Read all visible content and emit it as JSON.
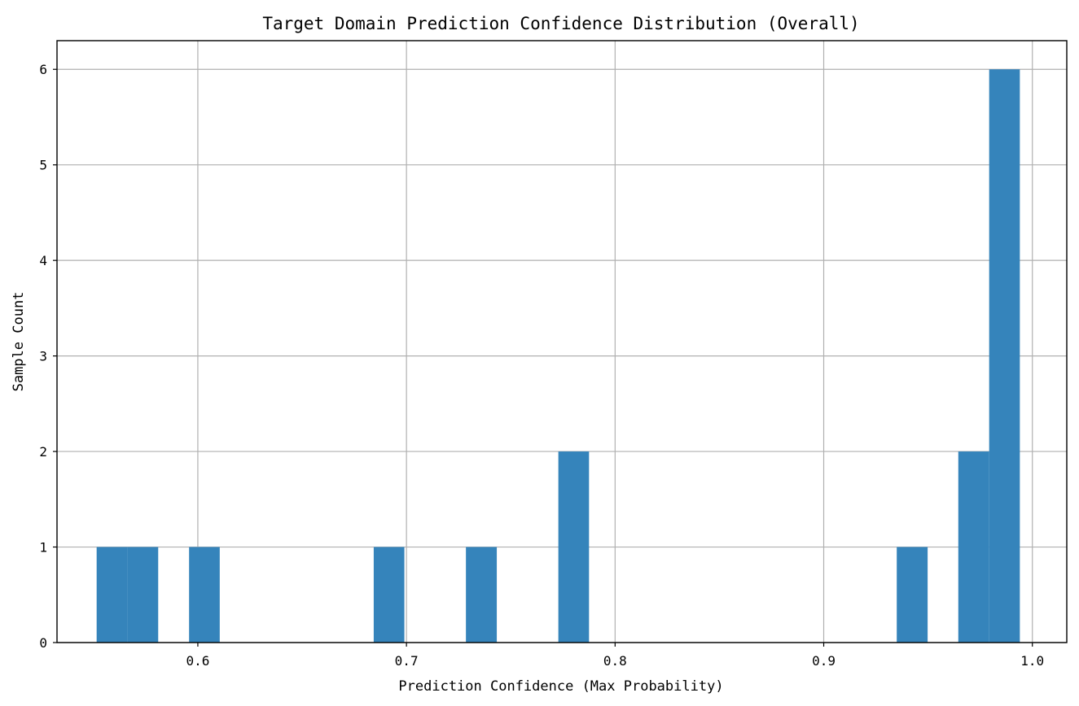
{
  "chart_data": {
    "type": "bar",
    "title": "Target Domain Prediction Confidence Distribution (Overall)",
    "xlabel": "Prediction Confidence (Max Probability)",
    "ylabel": "Sample Count",
    "xlim": [
      0.5325,
      1.0165
    ],
    "ylim": [
      0,
      6.3
    ],
    "grid": true,
    "bar_color": "#3584bb",
    "bin_width": 0.01475,
    "xticks": [
      {
        "value": 0.6,
        "label": "0.6"
      },
      {
        "value": 0.7,
        "label": "0.7"
      },
      {
        "value": 0.8,
        "label": "0.8"
      },
      {
        "value": 0.9,
        "label": "0.9"
      },
      {
        "value": 1.0,
        "label": "1.0"
      }
    ],
    "yticks": [
      {
        "value": 0,
        "label": "0"
      },
      {
        "value": 1,
        "label": "1"
      },
      {
        "value": 2,
        "label": "2"
      },
      {
        "value": 3,
        "label": "3"
      },
      {
        "value": 4,
        "label": "4"
      },
      {
        "value": 5,
        "label": "5"
      },
      {
        "value": 6,
        "label": "6"
      }
    ],
    "bins": [
      {
        "x_start": 0.5515,
        "x_end": 0.5663,
        "count": 1
      },
      {
        "x_start": 0.5663,
        "x_end": 0.581,
        "count": 1
      },
      {
        "x_start": 0.5958,
        "x_end": 0.6105,
        "count": 1
      },
      {
        "x_start": 0.6843,
        "x_end": 0.699,
        "count": 1
      },
      {
        "x_start": 0.7285,
        "x_end": 0.7433,
        "count": 1
      },
      {
        "x_start": 0.7728,
        "x_end": 0.7875,
        "count": 2
      },
      {
        "x_start": 0.935,
        "x_end": 0.9498,
        "count": 1
      },
      {
        "x_start": 0.9645,
        "x_end": 0.9793,
        "count": 2
      },
      {
        "x_start": 0.9793,
        "x_end": 0.994,
        "count": 6
      }
    ]
  }
}
